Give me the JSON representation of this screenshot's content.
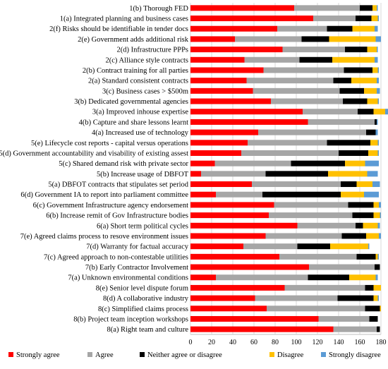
{
  "chart_data": {
    "type": "bar",
    "orientation": "horizontal",
    "stacked": true,
    "title": "",
    "xlabel": "",
    "ylabel": "",
    "xlim": [
      0,
      180
    ],
    "xticks": [
      0,
      20,
      40,
      60,
      80,
      100,
      120,
      140,
      160,
      180
    ],
    "grid": true,
    "legend_position": "bottom",
    "categories": [
      "1(b) Thorough FED",
      "1(a) Integrated planning and business cases",
      "2(f) Risks should be identifiable in tender docs",
      "2(e) Government adds additional risk",
      "2(d) Infrastructure PPPs",
      "2(c) Alliance style contracts",
      "2(b) Contract training for all parties",
      "2(a) Standard consistent contracts",
      "3(c) Business cases > $500m",
      "3(b) Dedicated governmental agencies",
      "3(a) Improved inhouse expertise",
      "4(b) Capture and share lessons learnt",
      "4(a) Increased use of technology",
      "5(e) Lifecycle cost reports - capital versus operations",
      "5(d) Government accountability and visability of existing assest",
      "5(c) Shared demand risk with private sector",
      "5(b) Increase usage of DBFOT",
      "5(a) DBFOT contracts that stipulates set period",
      "6(d) Government IA to report into parliament committee",
      "6(c) Government Infrastructure agency endorsement",
      "6(b) Increase remit of Gov Infrastructure bodies",
      "6(a) Short term political cycles",
      "7(e) Agreed claims process to resove environment issues",
      "7(d) Warranty for factual accuracy",
      "7(c) Agreed approach to non-contestable utilities",
      "7(b) Early Contractor Involvement",
      "7(a) Unknown environmental conditions",
      "8(e) Senior level dispute forum",
      "8(d) A collaborative industry",
      "8(c) Simplified claims process",
      "8(b) Project team inception workshops",
      "8(a) Right team and culture"
    ],
    "series": [
      {
        "name": "Strongly agree",
        "color": "#ff0000",
        "values": [
          98,
          116,
          82,
          42,
          87,
          51,
          69,
          53,
          59,
          76,
          106,
          111,
          64,
          54,
          48,
          23,
          10,
          58,
          24,
          79,
          74,
          101,
          71,
          50,
          84,
          112,
          24,
          89,
          61,
          72,
          121,
          135
        ]
      },
      {
        "name": "Agree",
        "color": "#a6a6a6",
        "values": [
          62,
          40,
          47,
          63,
          59,
          52,
          76,
          82,
          82,
          68,
          52,
          63,
          102,
          75,
          92,
          72,
          61,
          84,
          44,
          70,
          79,
          55,
          72,
          51,
          73,
          62,
          87,
          76,
          78,
          93,
          48,
          41
        ]
      },
      {
        "name": "Neither agree or disagree",
        "color": "#000000",
        "values": [
          12,
          15,
          24,
          26,
          21,
          31,
          27,
          17,
          23,
          23,
          15,
          2,
          9,
          41,
          28,
          51,
          59,
          15,
          74,
          24,
          20,
          7,
          23,
          31,
          18,
          5,
          39,
          8,
          34,
          14,
          8,
          3
        ]
      },
      {
        "name": "Disagree",
        "color": "#ffc000",
        "values": [
          4,
          6,
          21,
          44,
          9,
          40,
          5,
          24,
          12,
          10,
          11,
          0,
          0,
          7,
          9,
          19,
          37,
          15,
          22,
          5,
          6,
          14,
          12,
          36,
          2,
          0,
          25,
          7,
          4,
          1,
          0,
          0
        ]
      },
      {
        "name": "Strongly disagree",
        "color": "#5b9bd5",
        "values": [
          1,
          1,
          3,
          5,
          1,
          3,
          1,
          2,
          3,
          1,
          3,
          1,
          2,
          1,
          1,
          13,
          10,
          7,
          14,
          2,
          1,
          2,
          2,
          1,
          1,
          0,
          2,
          0,
          1,
          0,
          0,
          0
        ]
      }
    ]
  }
}
